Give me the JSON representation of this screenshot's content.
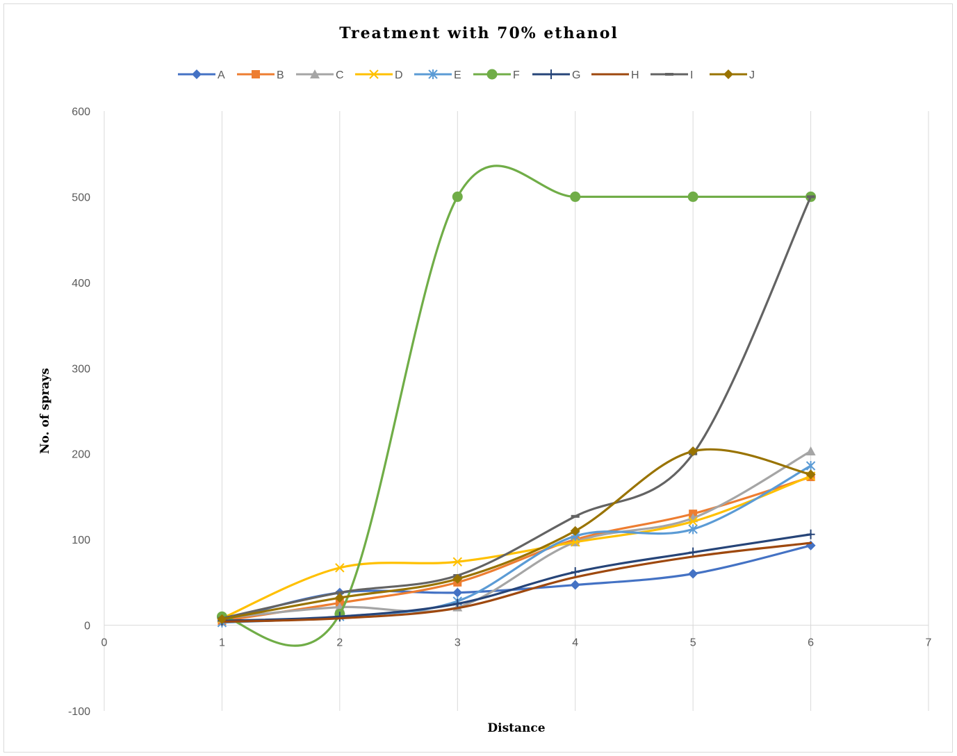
{
  "chart_data": {
    "type": "line",
    "title": "Treatment with 70% ethanol",
    "xlabel": "Distance",
    "ylabel": "No. of sprays",
    "xlim": [
      0,
      7
    ],
    "ylim": [
      -100,
      600
    ],
    "xticks": [
      0,
      1,
      2,
      3,
      4,
      5,
      6,
      7
    ],
    "yticks": [
      -100,
      0,
      100,
      200,
      300,
      400,
      500,
      600
    ],
    "grid": "vertical",
    "legend_position": "top",
    "smooth": true,
    "x": [
      1,
      2,
      3,
      4,
      5,
      6
    ],
    "series": [
      {
        "name": "A",
        "color": "#4472C4",
        "marker": "diamond",
        "values": [
          5,
          38,
          38,
          47,
          60,
          93
        ]
      },
      {
        "name": "B",
        "color": "#ED7D31",
        "marker": "square",
        "values": [
          5,
          26,
          50,
          100,
          130,
          173
        ]
      },
      {
        "name": "C",
        "color": "#A5A5A5",
        "marker": "triangle",
        "values": [
          8,
          21,
          21,
          97,
          125,
          203
        ]
      },
      {
        "name": "D",
        "color": "#FFC000",
        "marker": "x",
        "values": [
          8,
          67,
          74,
          97,
          121,
          174
        ]
      },
      {
        "name": "E",
        "color": "#5B9BD5",
        "marker": "star",
        "values": [
          3,
          10,
          28,
          104,
          112,
          186
        ]
      },
      {
        "name": "F",
        "color": "#70AD47",
        "marker": "circle",
        "values": [
          10,
          13,
          500,
          500,
          500,
          500
        ]
      },
      {
        "name": "G",
        "color": "#264478",
        "marker": "plus",
        "values": [
          5,
          10,
          25,
          62,
          85,
          106
        ]
      },
      {
        "name": "H",
        "color": "#9E480E",
        "marker": "none",
        "values": [
          4,
          8,
          20,
          56,
          80,
          96
        ]
      },
      {
        "name": "I",
        "color": "#636363",
        "marker": "dash",
        "values": [
          8,
          38,
          58,
          127,
          200,
          500
        ]
      },
      {
        "name": "J",
        "color": "#997300",
        "marker": "diamond",
        "values": [
          7,
          32,
          54,
          110,
          203,
          176
        ]
      }
    ]
  }
}
